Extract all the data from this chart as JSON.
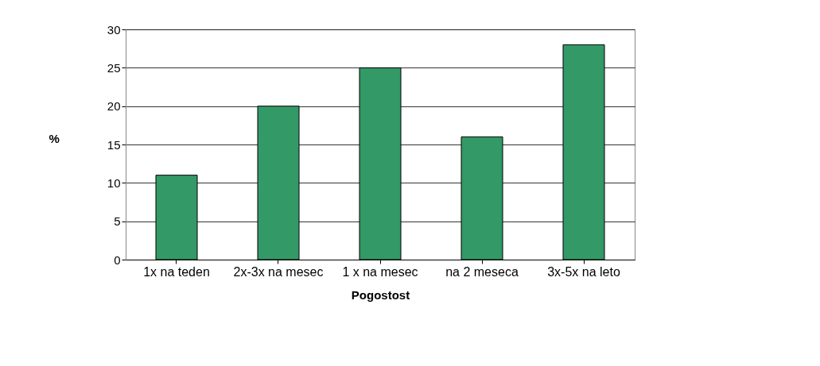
{
  "chart_data": {
    "type": "bar",
    "xlabel": "Pogostost",
    "ylabel": "%",
    "categories": [
      "1x na teden",
      "2x-3x na mesec",
      "1 x na mesec",
      "na 2 meseca",
      "3x-5x na leto"
    ],
    "values": [
      11,
      20,
      25,
      16,
      28
    ],
    "color": "#339966",
    "ylim": [
      0,
      30
    ],
    "yticks": [
      0,
      5,
      10,
      15,
      20,
      25,
      30
    ],
    "grid": "y"
  }
}
